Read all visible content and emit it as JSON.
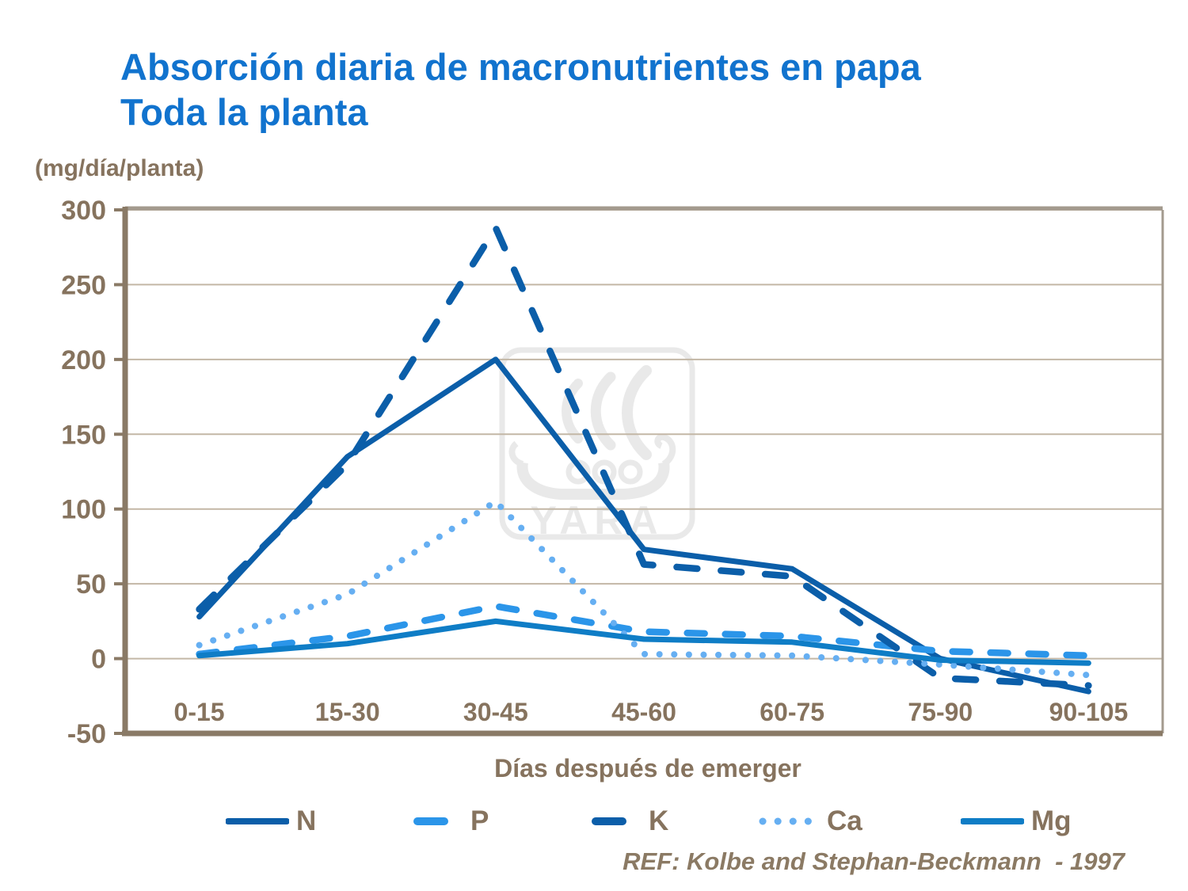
{
  "chart_data": {
    "type": "line",
    "title": "Absorción diaria de macronutrientes en papa",
    "subtitle": "Toda la planta",
    "ylabel": "(mg/día/planta)",
    "xlabel": "Días después de emerger",
    "categories": [
      "0-15",
      "15-30",
      "30-45",
      "45-60",
      "60-75",
      "75-90",
      "90-105"
    ],
    "yticks": [
      300,
      250,
      200,
      150,
      100,
      50,
      0,
      -50
    ],
    "ylim": [
      -50,
      300
    ],
    "grid": true,
    "legend_position": "bottom",
    "series": [
      {
        "name": "N",
        "color": "#0B5EA9",
        "line_style": "solid",
        "width": 7,
        "values": [
          28,
          135,
          200,
          73,
          60,
          0,
          -22
        ]
      },
      {
        "name": "P",
        "color": "#2B95E9",
        "line_style": "dashed",
        "width": 8.5,
        "values": [
          3,
          15,
          35,
          18,
          15,
          5,
          2
        ]
      },
      {
        "name": "K",
        "color": "#0B5EA9",
        "line_style": "long-dashed",
        "width": 8.5,
        "values": [
          33,
          130,
          288,
          63,
          55,
          -13,
          -18
        ]
      },
      {
        "name": "Ca",
        "color": "#66AFF2",
        "line_style": "dotted",
        "width": 8,
        "values": [
          9,
          43,
          105,
          3,
          2,
          -4,
          -11
        ]
      },
      {
        "name": "Mg",
        "color": "#0F7DC6",
        "line_style": "solid",
        "width": 7,
        "values": [
          2,
          10,
          25,
          13,
          11,
          -1,
          -3
        ]
      }
    ],
    "reference": "REF: Kolbe and Stephan-Beckmann  - 1997",
    "watermark": "YARA"
  },
  "colors": {
    "title": "#1173CE",
    "axis_text": "#86735E",
    "gridline": "#C3B7A6",
    "frame": "#8A7A66",
    "frame_top": "#A39A8E",
    "watermark": "#E9E9E9"
  }
}
